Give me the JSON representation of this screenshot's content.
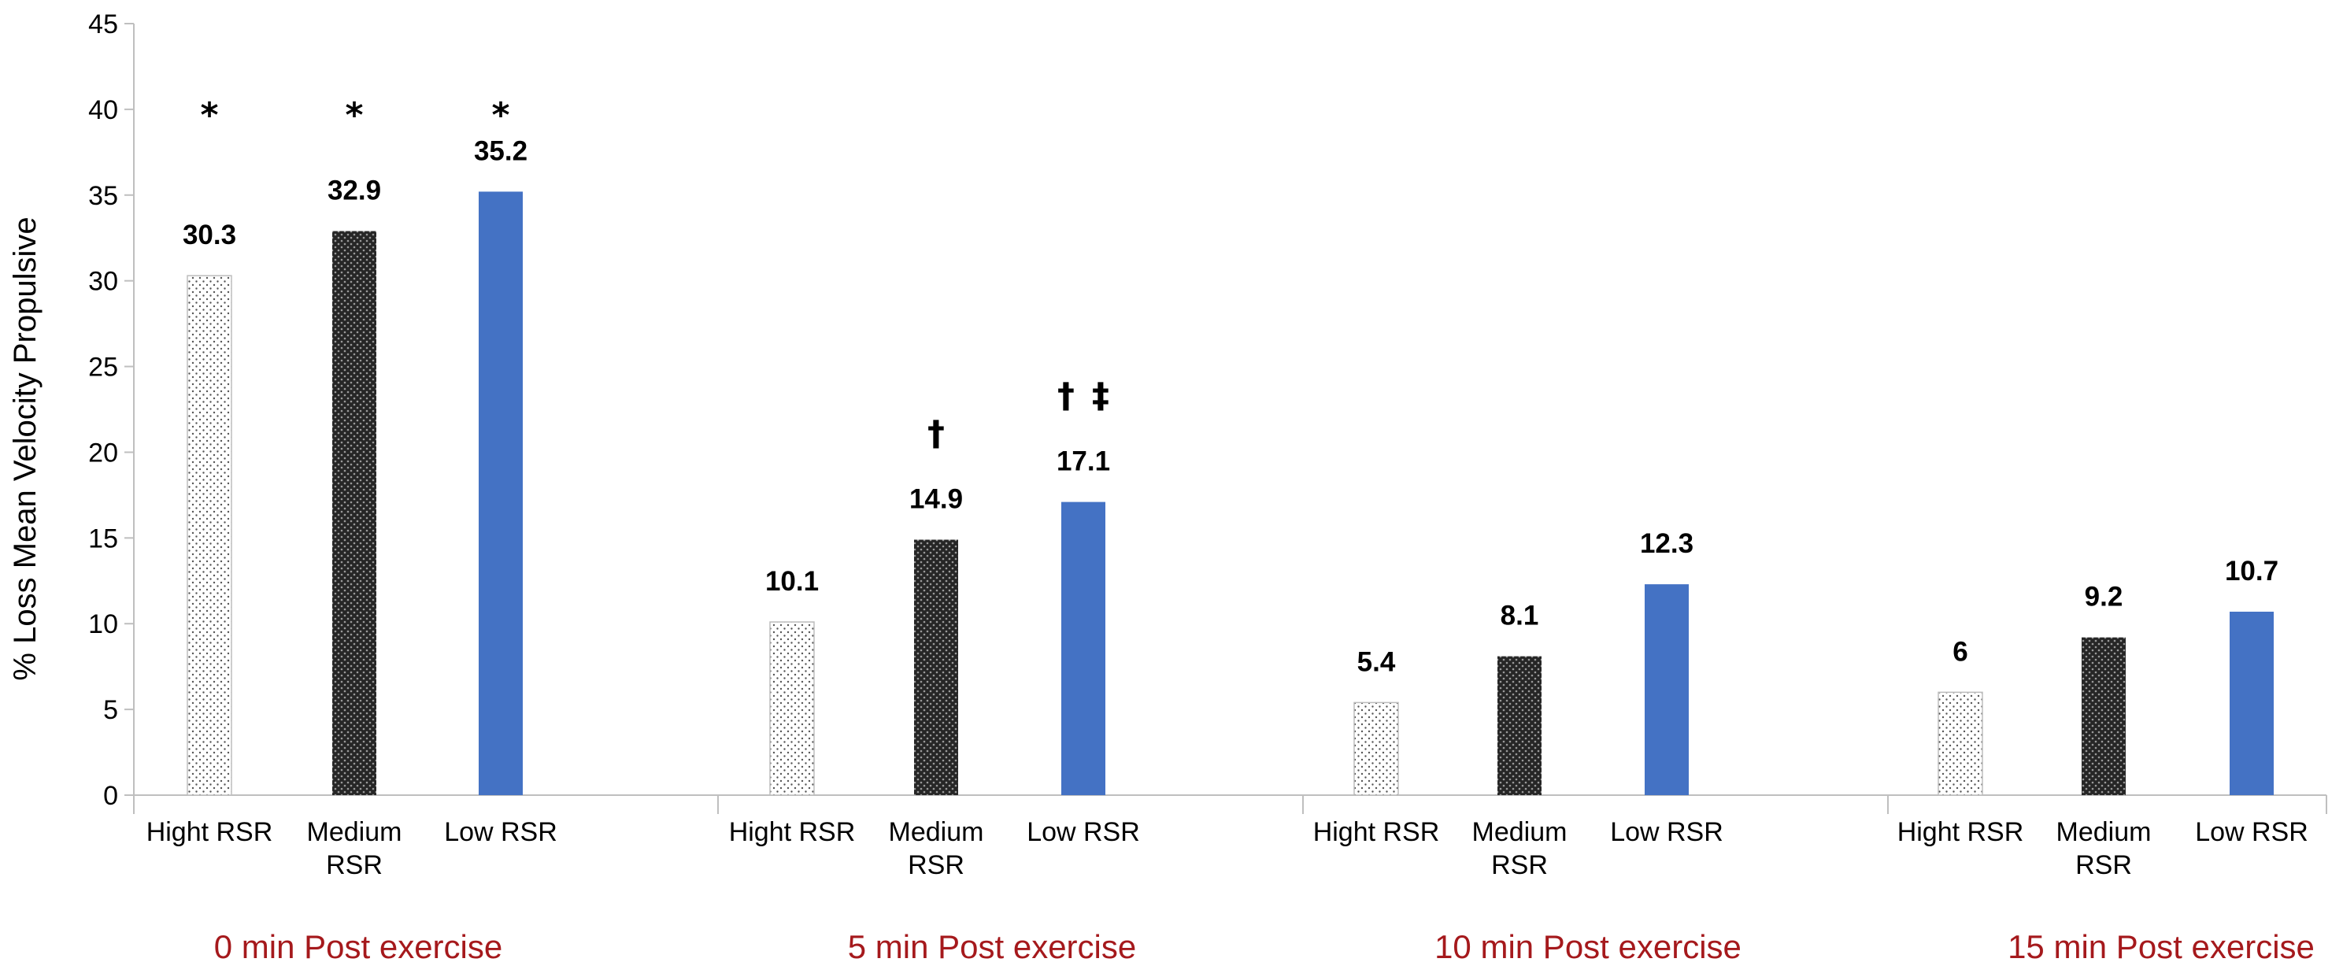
{
  "chart_data": {
    "type": "bar",
    "ylabel": "% Loss Mean Velocity Propulsive",
    "ylim": [
      0,
      45
    ],
    "yticks": [
      0,
      5,
      10,
      15,
      20,
      25,
      30,
      35,
      40,
      45
    ],
    "grid": false,
    "legend": "none",
    "groups": [
      {
        "label": "0 min Post exercise",
        "bars": [
          {
            "category": [
              "Hight RSR"
            ],
            "series": "Hight RSR",
            "value": 30.3,
            "value_label": "30.3",
            "marker": "*"
          },
          {
            "category": [
              "Medium",
              "RSR"
            ],
            "series": "Medium RSR",
            "value": 32.9,
            "value_label": "32.9",
            "marker": "*"
          },
          {
            "category": [
              "Low RSR"
            ],
            "series": "Low RSR",
            "value": 35.2,
            "value_label": "35.2",
            "marker": "*"
          }
        ]
      },
      {
        "label": "5 min Post exercise",
        "bars": [
          {
            "category": [
              "Hight RSR"
            ],
            "series": "Hight RSR",
            "value": 10.1,
            "value_label": "10.1",
            "marker": ""
          },
          {
            "category": [
              "Medium",
              "RSR"
            ],
            "series": "Medium RSR",
            "value": 14.9,
            "value_label": "14.9",
            "marker": "†"
          },
          {
            "category": [
              "Low RSR"
            ],
            "series": "Low RSR",
            "value": 17.1,
            "value_label": "17.1",
            "marker": "† ‡"
          }
        ]
      },
      {
        "label": "10 min Post exercise",
        "bars": [
          {
            "category": [
              "Hight RSR"
            ],
            "series": "Hight RSR",
            "value": 5.4,
            "value_label": "5.4",
            "marker": ""
          },
          {
            "category": [
              "Medium",
              "RSR"
            ],
            "series": "Medium RSR",
            "value": 8.1,
            "value_label": "8.1",
            "marker": ""
          },
          {
            "category": [
              "Low RSR"
            ],
            "series": "Low RSR",
            "value": 12.3,
            "value_label": "12.3",
            "marker": ""
          }
        ]
      },
      {
        "label": "15 min Post exercise",
        "bars": [
          {
            "category": [
              "Hight RSR"
            ],
            "series": "Hight RSR",
            "value": 6,
            "value_label": "6",
            "marker": ""
          },
          {
            "category": [
              "Medium",
              "RSR"
            ],
            "series": "Medium RSR",
            "value": 9.2,
            "value_label": "9.2",
            "marker": ""
          },
          {
            "category": [
              "Low RSR"
            ],
            "series": "Low RSR",
            "value": 10.7,
            "value_label": "10.7",
            "marker": ""
          }
        ]
      }
    ],
    "series_styles": {
      "Hight RSR": {
        "pattern": "light-dots",
        "fill": "#ffffff",
        "dot": "#555555"
      },
      "Medium RSR": {
        "pattern": "dark-checker",
        "fill": "#262626",
        "dot": "#9a9a9a"
      },
      "Low RSR": {
        "pattern": "solid",
        "fill": "#4472c4"
      }
    },
    "colors": {
      "group_label": "#a5191c",
      "axis": "#bfbfbf"
    }
  }
}
